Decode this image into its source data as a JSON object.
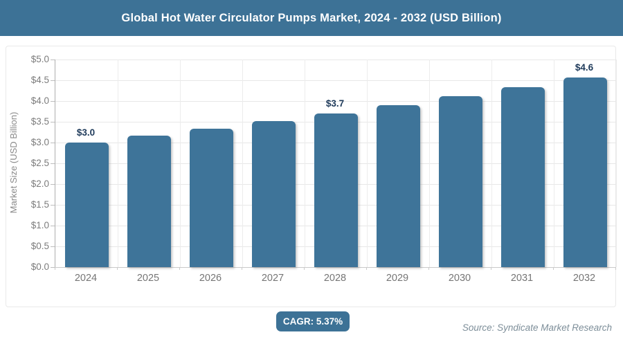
{
  "header": {
    "title": "Global Hot Water Circulator Pumps Market, 2024 - 2032 (USD Billion)"
  },
  "footer": {
    "cagr_badge": "CAGR: 5.37%",
    "source": "Source: Syndicate Market Research"
  },
  "colors": {
    "header_bg": "#3d7296",
    "bar": "#3e7499",
    "bar_label": "#1e3a5a",
    "axis_text": "#7c7c7c",
    "grid": "#e7e7e7",
    "badge_bg": "#3d7296",
    "source_text": "#7d8e99"
  },
  "chart_data": {
    "type": "bar",
    "title": "Global Hot Water Circulator Pumps Market, 2024 - 2032 (USD Billion)",
    "xlabel": "",
    "ylabel": "Market Size (USD Billion)",
    "categories": [
      "2024",
      "2025",
      "2026",
      "2027",
      "2028",
      "2029",
      "2030",
      "2031",
      "2032"
    ],
    "values": [
      3.0,
      3.16,
      3.33,
      3.51,
      3.7,
      3.9,
      4.11,
      4.33,
      4.56
    ],
    "bar_labels": [
      "$3.0",
      "",
      "",
      "",
      "$3.7",
      "",
      "",
      "",
      "$4.6"
    ],
    "ylim": [
      0,
      5
    ],
    "ytick_step": 0.5,
    "ytick_labels": [
      "$0.0",
      "$0.5",
      "$1.0",
      "$1.5",
      "$2.0",
      "$2.5",
      "$3.0",
      "$3.5",
      "$4.0",
      "$4.5",
      "$5.0"
    ],
    "grid": true,
    "legend_position": "none",
    "cagr": "5.37%"
  }
}
